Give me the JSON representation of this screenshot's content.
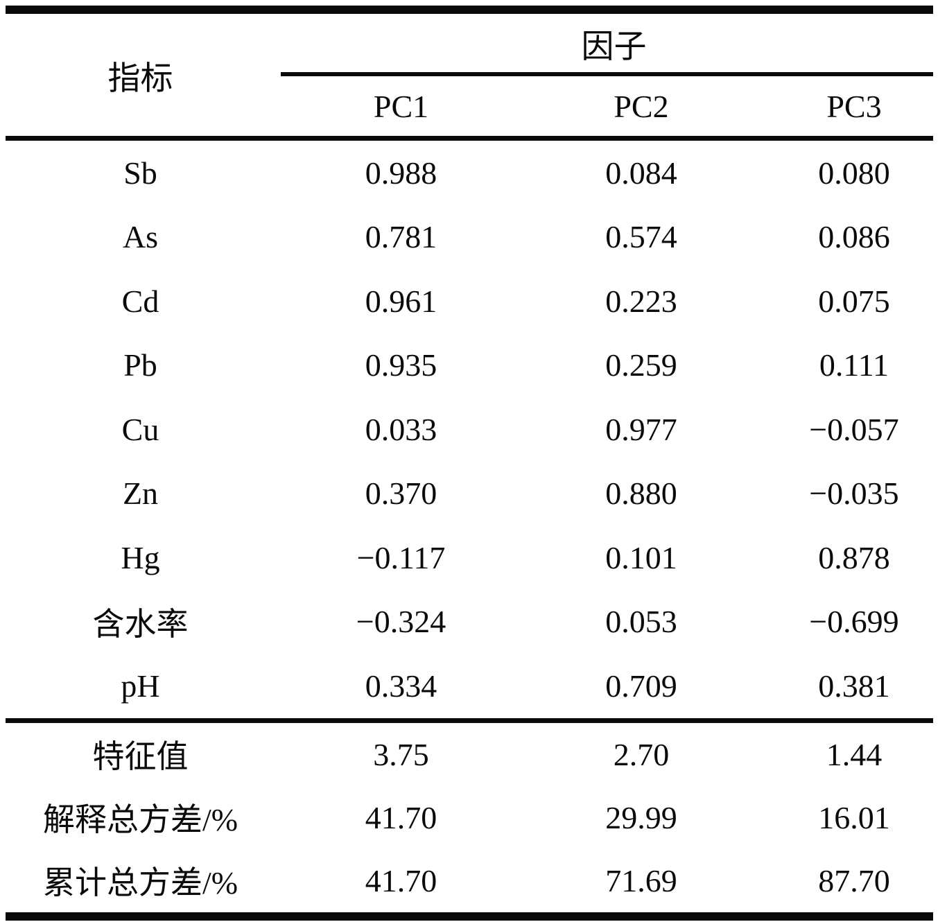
{
  "table": {
    "header": {
      "indicator_label": "指标",
      "factor_label": "因子",
      "pc_columns": [
        "PC1",
        "PC2",
        "PC3"
      ]
    },
    "rows": [
      {
        "label": "Sb",
        "pc1": "0.988",
        "pc2": "0.084",
        "pc3": "0.080"
      },
      {
        "label": "As",
        "pc1": "0.781",
        "pc2": "0.574",
        "pc3": "0.086"
      },
      {
        "label": "Cd",
        "pc1": "0.961",
        "pc2": "0.223",
        "pc3": "0.075"
      },
      {
        "label": "Pb",
        "pc1": "0.935",
        "pc2": "0.259",
        "pc3": "0.111"
      },
      {
        "label": "Cu",
        "pc1": "0.033",
        "pc2": "0.977",
        "pc3": "−0.057"
      },
      {
        "label": "Zn",
        "pc1": "0.370",
        "pc2": "0.880",
        "pc3": "−0.035"
      },
      {
        "label": "Hg",
        "pc1": "−0.117",
        "pc2": "0.101",
        "pc3": "0.878"
      },
      {
        "label": "含水率",
        "pc1": "−0.324",
        "pc2": "0.053",
        "pc3": "−0.699"
      },
      {
        "label": "pH",
        "pc1": "0.334",
        "pc2": "0.709",
        "pc3": "0.381"
      }
    ],
    "summary_rows": [
      {
        "label": "特征值",
        "pc1": "3.75",
        "pc2": "2.70",
        "pc3": "1.44"
      },
      {
        "label": "解释总方差/%",
        "pc1": "41.70",
        "pc2": "29.99",
        "pc3": "16.01"
      },
      {
        "label": "累计总方差/%",
        "pc1": "41.70",
        "pc2": "71.69",
        "pc3": "87.70"
      }
    ],
    "line_color": "#0a0a0a",
    "background_color": "#ffffff"
  }
}
